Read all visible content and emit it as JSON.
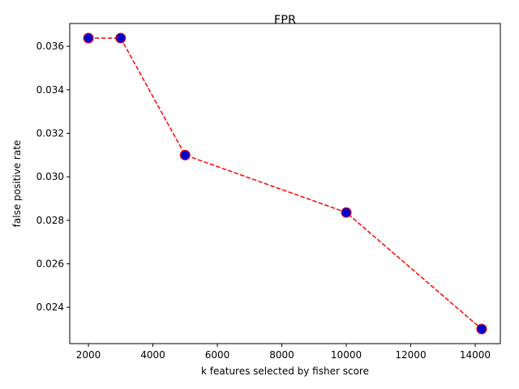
{
  "chart_data": {
    "type": "line",
    "title": "FPR",
    "xlabel": "k features selected by fisher score",
    "ylabel": "false positive rate",
    "x": [
      2000,
      3000,
      5000,
      10000,
      14200
    ],
    "series": [
      {
        "values": [
          0.03638,
          0.03638,
          0.031,
          0.02836,
          0.023
        ]
      }
    ],
    "xlim": [
      1420,
      14780
    ],
    "ylim": [
      0.02233,
      0.03705
    ],
    "xticks": [
      2000,
      4000,
      6000,
      8000,
      10000,
      12000,
      14000
    ],
    "xtick_labels": [
      "2000",
      "4000",
      "6000",
      "8000",
      "10000",
      "12000",
      "14000"
    ],
    "yticks": [
      0.024,
      0.026,
      0.028,
      0.03,
      0.032,
      0.034,
      0.036
    ],
    "ytick_labels": [
      "0.024",
      "0.026",
      "0.028",
      "0.030",
      "0.032",
      "0.034",
      "0.036"
    ],
    "grid": false,
    "line_style": "dashed",
    "line_color": "#ff0000",
    "marker_face_color": "#0000cd",
    "marker_edge_color": "#ff0000"
  }
}
